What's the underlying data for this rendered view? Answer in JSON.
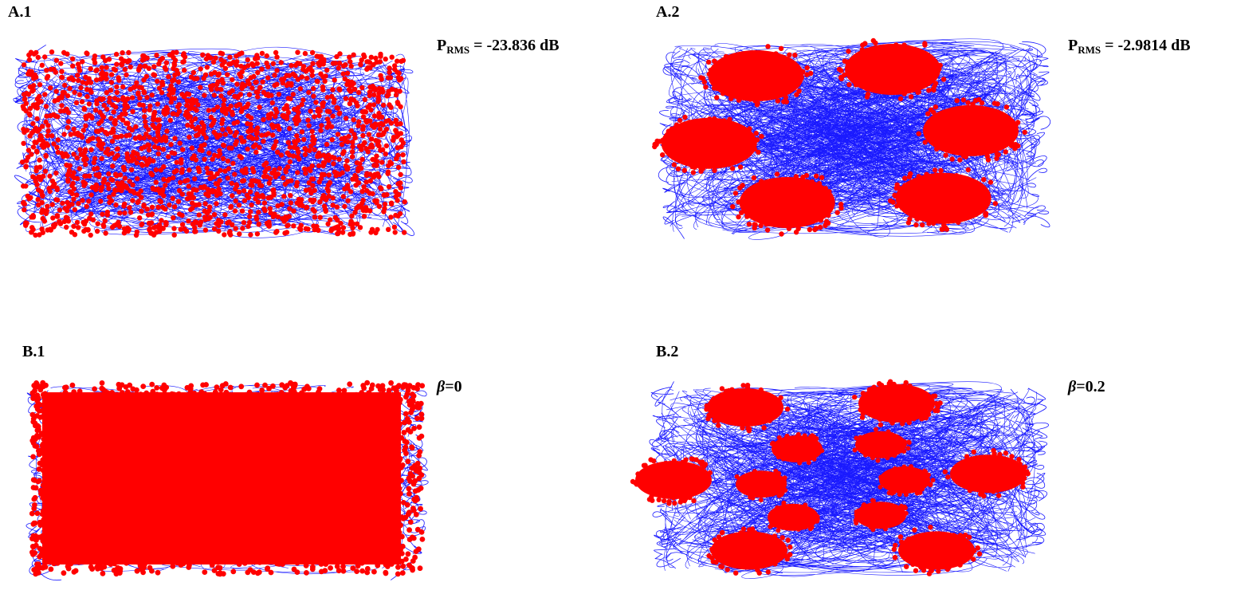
{
  "panels": [
    {
      "id": "A1",
      "label": "A.1",
      "annotation": {
        "symbol": "P",
        "subscript": "RMS",
        "text": " = -23.836 dB"
      },
      "constellation": "scattered-square",
      "colors": {
        "trajectory": "#1a1aff",
        "symbols": "#ff0000"
      }
    },
    {
      "id": "A2",
      "label": "A.2",
      "annotation": {
        "symbol": "P",
        "subscript": "RMS",
        "text": " = -2.9814 dB"
      },
      "constellation": "6-clusters",
      "colors": {
        "trajectory": "#1a1aff",
        "symbols": "#ff0000"
      }
    },
    {
      "id": "B1",
      "label": "B.1",
      "annotation": {
        "symbol": "β",
        "subscript": "",
        "text": "=0"
      },
      "constellation": "dense-filled-square",
      "colors": {
        "trajectory": "#1a1aff",
        "symbols": "#ff0000"
      }
    },
    {
      "id": "B2",
      "label": "B.2",
      "annotation": {
        "symbol": "β",
        "subscript": "",
        "text": "=0.2"
      },
      "constellation": "12-clusters",
      "colors": {
        "trajectory": "#1a1aff",
        "symbols": "#ff0000"
      }
    }
  ]
}
